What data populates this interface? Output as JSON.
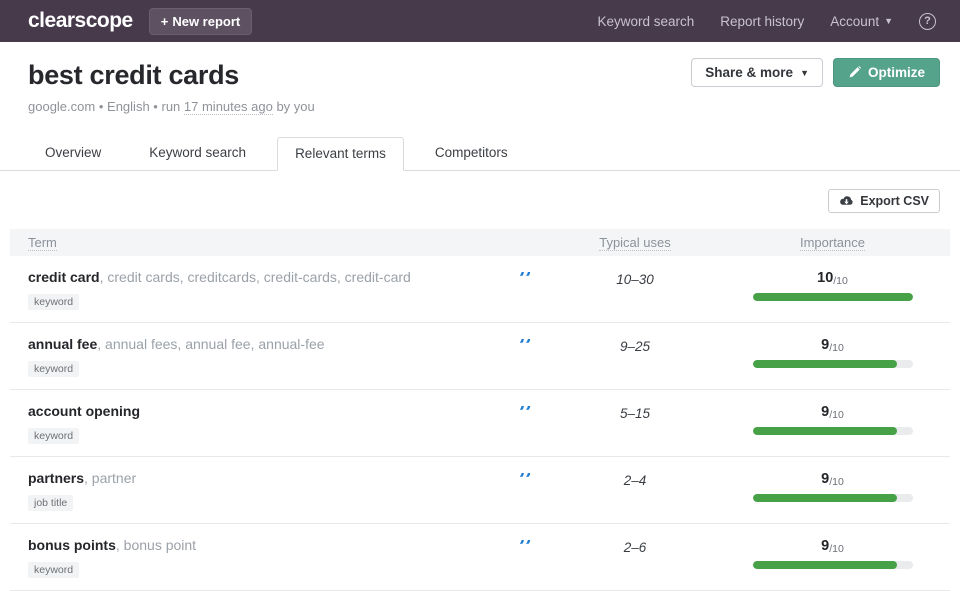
{
  "navbar": {
    "logo": "clearscope",
    "new_report": {
      "icon": "+",
      "label": "New report"
    },
    "links": {
      "keyword_search": "Keyword search",
      "report_history": "Report history"
    },
    "account_label": "Account",
    "help_label": "?"
  },
  "page": {
    "title": "best credit cards",
    "meta": {
      "domain": "google.com",
      "sep1": "•",
      "language": "English",
      "sep2": "•",
      "run_prefix": "run",
      "run_time": "17 minutes ago",
      "run_suffix": "by you"
    },
    "share_button": "Share & more",
    "optimize_button": "Optimize"
  },
  "tabs": [
    {
      "label": "Overview",
      "active": false
    },
    {
      "label": "Keyword search",
      "active": false
    },
    {
      "label": "Relevant terms",
      "active": true
    },
    {
      "label": "Competitors",
      "active": false
    }
  ],
  "toolbar": {
    "export_csv": "Export CSV"
  },
  "table": {
    "columns": {
      "term": "Term",
      "typical_uses": "Typical uses",
      "importance": "Importance"
    },
    "importance_suffix": "/10",
    "quote_glyph": "”",
    "rows": [
      {
        "term": "credit card",
        "variants": ", credit cards, creditcards, credit-cards, credit-card",
        "type": "keyword",
        "typical_uses": "10–30",
        "importance": "10",
        "bar_pct": 100
      },
      {
        "term": "annual fee",
        "variants": ", annual fees, annual fee, annual-fee",
        "type": "keyword",
        "typical_uses": "9–25",
        "importance": "9",
        "bar_pct": 90
      },
      {
        "term": "account opening",
        "variants": "",
        "type": "keyword",
        "typical_uses": "5–15",
        "importance": "9",
        "bar_pct": 90
      },
      {
        "term": "partners",
        "variants": ", partner",
        "type": "job title",
        "typical_uses": "2–4",
        "importance": "9",
        "bar_pct": 90
      },
      {
        "term": "bonus points",
        "variants": ", bonus point",
        "type": "keyword",
        "typical_uses": "2–6",
        "importance": "9",
        "bar_pct": 90
      }
    ]
  },
  "colors": {
    "navbar_bg": "#463a4b",
    "optimize_green": "#55a38a",
    "bar_green": "#47a247",
    "quote_blue": "#1d7cd4"
  }
}
